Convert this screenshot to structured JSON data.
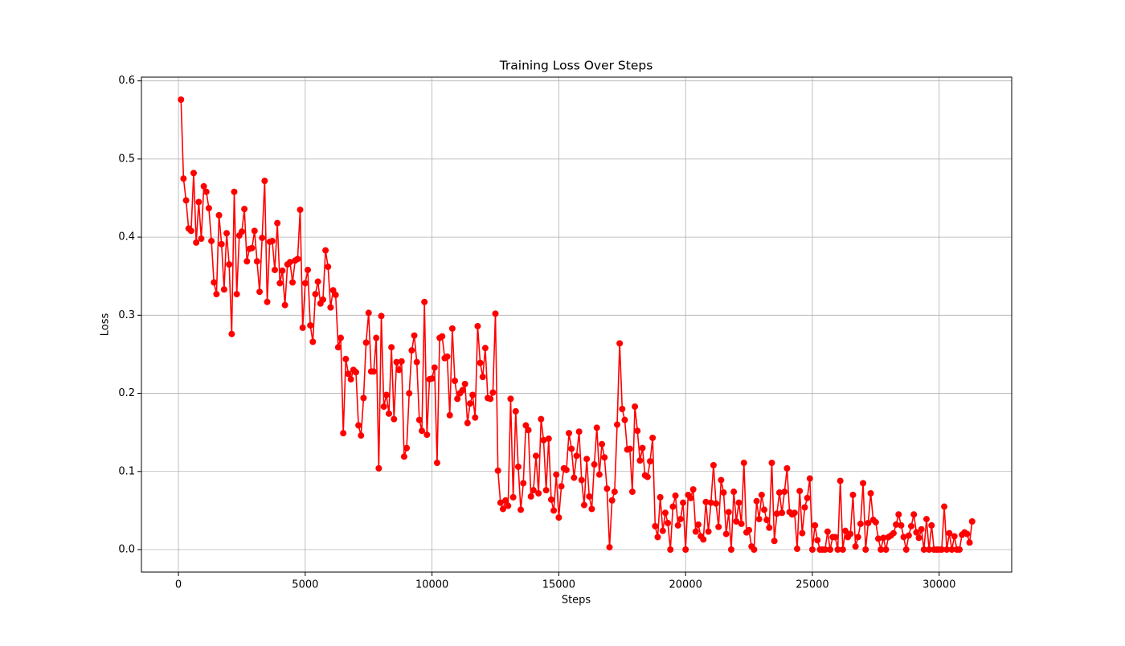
{
  "chart_data": {
    "type": "line",
    "title": "Training Loss Over Steps",
    "x_label": "Steps",
    "y_label": "Loss",
    "x": [
      100,
      200,
      300,
      400,
      500,
      600,
      700,
      800,
      900,
      1000,
      1100,
      1200,
      1300,
      1400,
      1500,
      1600,
      1700,
      1800,
      1900,
      2000,
      2100,
      2200,
      2300,
      2400,
      2500,
      2600,
      2700,
      2800,
      2900,
      3000,
      3100,
      3200,
      3300,
      3400,
      3500,
      3600,
      3700,
      3800,
      3900,
      4000,
      4100,
      4200,
      4300,
      4400,
      4500,
      4600,
      4700,
      4800,
      4900,
      5000,
      5100,
      5200,
      5300,
      5400,
      5500,
      5600,
      5700,
      5800,
      5900,
      6000,
      6100,
      6200,
      6300,
      6400,
      6500,
      6600,
      6700,
      6800,
      6900,
      7000,
      7100,
      7200,
      7300,
      7400,
      7500,
      7600,
      7700,
      7800,
      7900,
      8000,
      8100,
      8200,
      8300,
      8400,
      8500,
      8600,
      8700,
      8800,
      8900,
      9000,
      9100,
      9200,
      9300,
      9400,
      9500,
      9600,
      9700,
      9800,
      9900,
      10000,
      10100,
      10200,
      10300,
      10400,
      10500,
      10600,
      10700,
      10800,
      10900,
      11000,
      11100,
      11200,
      11300,
      11400,
      11500,
      11600,
      11700,
      11800,
      11900,
      12000,
      12100,
      12200,
      12300,
      12400,
      12500,
      12600,
      12700,
      12800,
      12900,
      13000,
      13100,
      13200,
      13300,
      13400,
      13500,
      13600,
      13700,
      13800,
      13900,
      14000,
      14100,
      14200,
      14300,
      14400,
      14500,
      14600,
      14700,
      14800,
      14900,
      15000,
      15100,
      15200,
      15300,
      15400,
      15500,
      15600,
      15700,
      15800,
      15900,
      16000,
      16100,
      16200,
      16300,
      16400,
      16500,
      16600,
      16700,
      16800,
      16900,
      17000,
      17100,
      17200,
      17300,
      17400,
      17500,
      17600,
      17700,
      17800,
      17900,
      18000,
      18100,
      18200,
      18300,
      18400,
      18500,
      18600,
      18700,
      18800,
      18900,
      19000,
      19100,
      19200,
      19300,
      19400,
      19500,
      19600,
      19700,
      19800,
      19900,
      20000,
      20100,
      20200,
      20300,
      20400,
      20500,
      20600,
      20700,
      20800,
      20900,
      21000,
      21100,
      21200,
      21300,
      21400,
      21500,
      21600,
      21700,
      21800,
      21900,
      22000,
      22100,
      22200,
      22300,
      22400,
      22500,
      22600,
      22700,
      22800,
      22900,
      23000,
      23100,
      23200,
      23300,
      23400,
      23500,
      23600,
      23700,
      23800,
      23900,
      24000,
      24100,
      24200,
      24300,
      24400,
      24500,
      24600,
      24700,
      24800,
      24900,
      25000,
      25100,
      25200,
      25300,
      25400,
      25500,
      25600,
      25700,
      25800,
      25900,
      26000,
      26100,
      26200,
      26300,
      26400,
      26500,
      26600,
      26700,
      26800,
      26900,
      27000,
      27100,
      27200,
      27300,
      27400,
      27500,
      27600,
      27700,
      27800,
      27900,
      28000,
      28100,
      28200,
      28300,
      28400,
      28500,
      28600,
      28700,
      28800,
      28900,
      29000,
      29100,
      29200,
      29300,
      29400,
      29500,
      29600,
      29700,
      29800,
      29900,
      30000,
      30100,
      30200,
      30300,
      30400,
      30500,
      30600,
      30700,
      30800,
      30900,
      31000,
      31100,
      31200,
      31300
    ],
    "series": [
      {
        "color": "#ff0000",
        "values": [
          0.576,
          0.475,
          0.447,
          0.411,
          0.408,
          0.482,
          0.393,
          0.445,
          0.398,
          0.465,
          0.458,
          0.437,
          0.395,
          0.342,
          0.327,
          0.428,
          0.391,
          0.333,
          0.405,
          0.365,
          0.276,
          0.458,
          0.327,
          0.402,
          0.407,
          0.436,
          0.369,
          0.385,
          0.386,
          0.408,
          0.369,
          0.33,
          0.399,
          0.472,
          0.317,
          0.394,
          0.395,
          0.358,
          0.418,
          0.341,
          0.357,
          0.313,
          0.365,
          0.368,
          0.342,
          0.37,
          0.372,
          0.435,
          0.284,
          0.341,
          0.358,
          0.287,
          0.266,
          0.327,
          0.343,
          0.315,
          0.32,
          0.383,
          0.362,
          0.31,
          0.332,
          0.326,
          0.259,
          0.271,
          0.149,
          0.244,
          0.225,
          0.218,
          0.23,
          0.227,
          0.159,
          0.146,
          0.194,
          0.265,
          0.303,
          0.228,
          0.228,
          0.271,
          0.104,
          0.299,
          0.183,
          0.198,
          0.174,
          0.259,
          0.167,
          0.24,
          0.23,
          0.241,
          0.119,
          0.13,
          0.2,
          0.255,
          0.274,
          0.24,
          0.166,
          0.152,
          0.317,
          0.147,
          0.218,
          0.219,
          0.233,
          0.111,
          0.271,
          0.273,
          0.245,
          0.247,
          0.172,
          0.283,
          0.216,
          0.193,
          0.2,
          0.204,
          0.212,
          0.162,
          0.187,
          0.198,
          0.169,
          0.286,
          0.239,
          0.221,
          0.258,
          0.194,
          0.193,
          0.201,
          0.302,
          0.101,
          0.06,
          0.052,
          0.063,
          0.056,
          0.193,
          0.067,
          0.177,
          0.106,
          0.051,
          0.085,
          0.159,
          0.153,
          0.068,
          0.076,
          0.12,
          0.072,
          0.167,
          0.14,
          0.076,
          0.142,
          0.064,
          0.05,
          0.096,
          0.041,
          0.081,
          0.104,
          0.102,
          0.149,
          0.129,
          0.092,
          0.12,
          0.151,
          0.089,
          0.057,
          0.116,
          0.068,
          0.052,
          0.109,
          0.156,
          0.096,
          0.135,
          0.118,
          0.078,
          0.003,
          0.063,
          0.074,
          0.16,
          0.264,
          0.18,
          0.166,
          0.128,
          0.129,
          0.074,
          0.183,
          0.152,
          0.114,
          0.13,
          0.095,
          0.093,
          0.113,
          0.143,
          0.03,
          0.016,
          0.067,
          0.024,
          0.047,
          0.034,
          0.0,
          0.055,
          0.069,
          0.031,
          0.039,
          0.06,
          0.0,
          0.07,
          0.066,
          0.077,
          0.023,
          0.032,
          0.017,
          0.013,
          0.061,
          0.023,
          0.06,
          0.108,
          0.059,
          0.029,
          0.089,
          0.073,
          0.02,
          0.048,
          0.0,
          0.074,
          0.036,
          0.06,
          0.033,
          0.111,
          0.022,
          0.025,
          0.004,
          0.0,
          0.062,
          0.039,
          0.07,
          0.051,
          0.038,
          0.028,
          0.111,
          0.011,
          0.046,
          0.073,
          0.047,
          0.074,
          0.104,
          0.048,
          0.045,
          0.047,
          0.001,
          0.075,
          0.021,
          0.054,
          0.066,
          0.091,
          0.0,
          0.031,
          0.012,
          0.0,
          0.0,
          0.0,
          0.023,
          0.0,
          0.016,
          0.016,
          0.0,
          0.088,
          0.0,
          0.024,
          0.016,
          0.02,
          0.07,
          0.004,
          0.016,
          0.033,
          0.085,
          0.0,
          0.034,
          0.072,
          0.038,
          0.035,
          0.014,
          0.0,
          0.015,
          0.0,
          0.016,
          0.018,
          0.021,
          0.032,
          0.045,
          0.031,
          0.016,
          0.0,
          0.018,
          0.03,
          0.045,
          0.022,
          0.015,
          0.026,
          0.0,
          0.039,
          0.0,
          0.031,
          0.0,
          0.0,
          0.0,
          0.0,
          0.055,
          0.0,
          0.021,
          0.0,
          0.017,
          0.0,
          0.0,
          0.019,
          0.022,
          0.02,
          0.009,
          0.036
        ]
      }
    ],
    "xlim": [
      -1460,
      32860
    ],
    "ylim": [
      -0.0288,
      0.6048
    ],
    "xticks": [
      0,
      5000,
      10000,
      15000,
      20000,
      25000,
      30000
    ],
    "yticks": [
      {
        "value": 0,
        "label": "0.0"
      },
      0.1,
      0.2,
      0.3,
      0.4,
      0.5,
      0.6
    ],
    "grid": true
  }
}
